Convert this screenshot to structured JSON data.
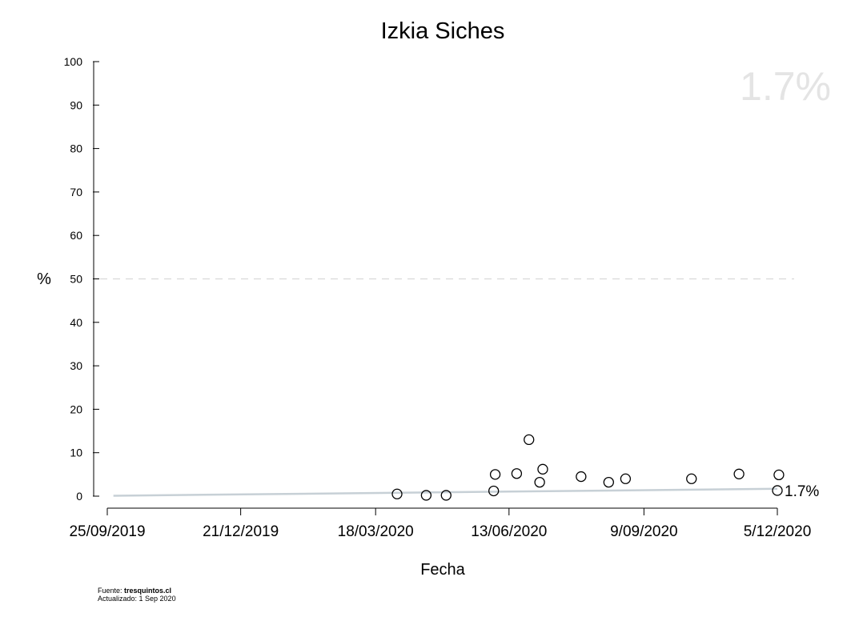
{
  "chart_data": {
    "type": "scatter",
    "title": "Izkia Siches",
    "xlabel": "Fecha",
    "ylabel": "%",
    "ylim": [
      0,
      100
    ],
    "yticks": [
      0,
      10,
      20,
      30,
      40,
      50,
      60,
      70,
      80,
      90,
      100
    ],
    "xlim": [
      "2019-09-25",
      "2020-12-05"
    ],
    "xticks": [
      {
        "date": "2019-09-25",
        "label": "25/09/2019"
      },
      {
        "date": "2019-12-21",
        "label": "21/12/2019"
      },
      {
        "date": "2020-03-18",
        "label": "18/03/2020"
      },
      {
        "date": "2020-06-13",
        "label": "13/06/2020"
      },
      {
        "date": "2020-09-09",
        "label": "9/09/2020"
      },
      {
        "date": "2020-12-05",
        "label": "5/12/2020"
      }
    ],
    "reference_line": {
      "y": 50,
      "style": "dashed",
      "color": "#d9d9d9"
    },
    "trend_line": {
      "color": "#c7d0d6",
      "x": [
        "2019-09-29",
        "2020-12-05"
      ],
      "y": [
        0.1,
        1.7
      ]
    },
    "points": [
      {
        "x": "2020-04-01",
        "y": 0.5
      },
      {
        "x": "2020-04-20",
        "y": 0.2
      },
      {
        "x": "2020-05-03",
        "y": 0.2
      },
      {
        "x": "2020-06-03",
        "y": 1.2
      },
      {
        "x": "2020-06-04",
        "y": 5.0
      },
      {
        "x": "2020-06-18",
        "y": 5.2
      },
      {
        "x": "2020-06-26",
        "y": 13.0
      },
      {
        "x": "2020-07-03",
        "y": 3.2
      },
      {
        "x": "2020-07-05",
        "y": 6.2
      },
      {
        "x": "2020-07-30",
        "y": 4.5
      },
      {
        "x": "2020-08-17",
        "y": 3.2
      },
      {
        "x": "2020-08-28",
        "y": 4.0
      },
      {
        "x": "2020-10-10",
        "y": 4.0
      },
      {
        "x": "2020-11-10",
        "y": 5.1
      },
      {
        "x": "2020-12-05",
        "y": 1.3
      },
      {
        "x": "2020-12-06",
        "y": 4.9
      }
    ],
    "point_color": "#000000",
    "latest_value_label": "1.7%",
    "big_value_label": "1.7%",
    "grid": false
  },
  "source": {
    "prefix": "Fuente: ",
    "site": "tresquintos.cl",
    "updated": "Actualizado: 1 Sep 2020"
  }
}
